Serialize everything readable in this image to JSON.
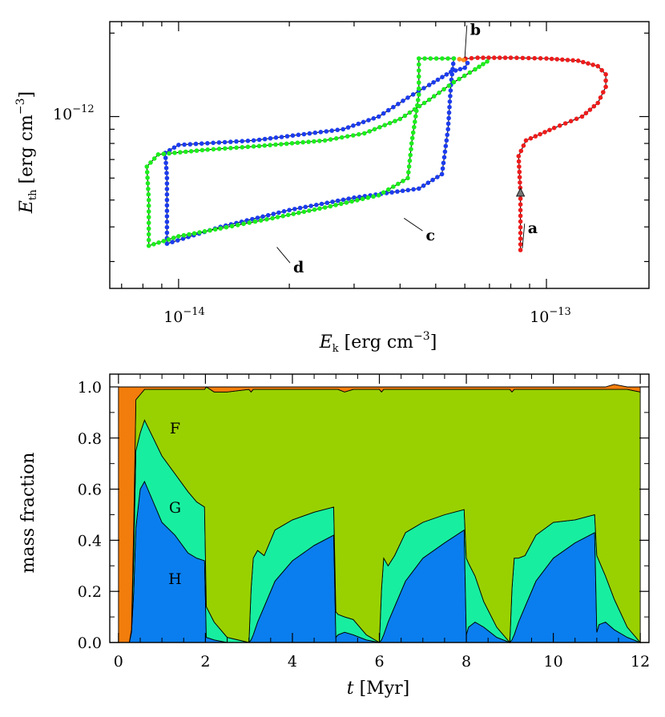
{
  "chart_data": [
    {
      "type": "line",
      "x_scale": "log",
      "y_scale": "log",
      "xlabel_main": "E",
      "xlabel_sub": "k",
      "xlabel_units": "[erg cm",
      "xlabel_exp": "−3",
      "xlabel_close": "]",
      "ylabel_main": "E",
      "ylabel_sub": "th",
      "ylabel_units": "[erg cm",
      "ylabel_exp": "−3",
      "ylabel_close": "]",
      "xlim": [
        6.5e-15,
        1.9e-13
      ],
      "ylim": [
        2.4e-13,
        2.2e-12
      ],
      "x_tick_labels": [
        {
          "value": 1e-14,
          "base": "10",
          "exp": "−14"
        },
        {
          "value": 1e-13,
          "base": "10",
          "exp": "−13"
        }
      ],
      "y_tick_labels": [
        {
          "value": 1e-12,
          "base": "10",
          "exp": "−12"
        }
      ],
      "series": [
        {
          "label": "a",
          "color": "#ee1c1c",
          "points": [
            [
              8.5e-14,
              3.3e-13
            ],
            [
              8.5e-14,
              5.3e-13
            ],
            [
              8.4e-14,
              7.2e-13
            ],
            [
              8.8e-14,
              8.2e-13
            ],
            [
              1.05e-13,
              9.1e-13
            ],
            [
              1.25e-13,
              1e-12
            ],
            [
              1.38e-13,
              1.12e-12
            ],
            [
              1.45e-13,
              1.28e-12
            ],
            [
              1.45e-13,
              1.42e-12
            ],
            [
              1.38e-13,
              1.52e-12
            ],
            [
              1.22e-13,
              1.59e-12
            ],
            [
              1e-13,
              1.62e-12
            ],
            [
              8e-14,
              1.63e-12
            ],
            [
              6.5e-14,
              1.63e-12
            ],
            [
              5.8e-14,
              1.61e-12
            ]
          ]
        },
        {
          "label": "b",
          "color": "#ff8a1c",
          "points": [
            [
              5.8e-14,
              1.61e-12
            ],
            [
              5.95e-14,
              1.6e-12
            ],
            [
              6.1e-14,
              1.56e-12
            ]
          ]
        },
        {
          "label": "c",
          "color": "#1c3cee",
          "points": [
            [
              6.1e-14,
              1.56e-12
            ],
            [
              6e-14,
              1.5e-12
            ],
            [
              5.5e-14,
              1.45e-12
            ],
            [
              4.8e-14,
              1.3e-12
            ],
            [
              4.2e-14,
              1.17e-12
            ],
            [
              3.5e-14,
              1e-12
            ],
            [
              2.8e-14,
              9e-13
            ],
            [
              1.6e-14,
              8.2e-13
            ],
            [
              1e-14,
              7.9e-13
            ],
            [
              9.2e-15,
              7.4e-13
            ],
            [
              9.3e-15,
              6e-13
            ],
            [
              9.3e-15,
              3.48e-13
            ],
            [
              1.3e-14,
              4e-13
            ],
            [
              2e-14,
              4.6e-13
            ],
            [
              3e-14,
              5.1e-13
            ],
            [
              4.5e-14,
              5.5e-13
            ],
            [
              5.2e-14,
              6.2e-13
            ],
            [
              5.4e-14,
              9e-13
            ],
            [
              5.5e-14,
              1.3e-12
            ],
            [
              5.6e-14,
              1.62e-12
            ]
          ]
        },
        {
          "label": "d",
          "color": "#1cee1c",
          "points": [
            [
              5.6e-14,
              1.62e-12
            ],
            [
              4.5e-14,
              1.62e-12
            ],
            [
              4.5e-14,
              1.2e-12
            ],
            [
              4.3e-14,
              8e-13
            ],
            [
              4.2e-14,
              6e-13
            ],
            [
              3.5e-14,
              5.2e-13
            ],
            [
              2.5e-14,
              4.7e-13
            ],
            [
              1.8e-14,
              4.3e-13
            ],
            [
              1.3e-14,
              3.95e-13
            ],
            [
              1e-14,
              3.7e-13
            ],
            [
              8.3e-15,
              3.42e-13
            ],
            [
              8.3e-15,
              5e-13
            ],
            [
              8.2e-15,
              6.6e-13
            ],
            [
              8.8e-15,
              7.3e-13
            ],
            [
              1.2e-14,
              7.6e-13
            ],
            [
              1.6e-14,
              7.8e-13
            ],
            [
              2.5e-14,
              8.2e-13
            ],
            [
              3.2e-14,
              8.7e-13
            ],
            [
              4e-14,
              9.8e-13
            ],
            [
              4.8e-14,
              1.15e-12
            ],
            [
              5.6e-14,
              1.33e-12
            ],
            [
              6.4e-14,
              1.48e-12
            ],
            [
              6.9e-14,
              1.58e-12
            ]
          ]
        }
      ],
      "arrow_marker": [
        8.5e-14,
        5.3e-13
      ],
      "annotations": [
        {
          "text": "a",
          "at": [
            8.9e-14,
            3.95e-13
          ],
          "tip": [
            8.6e-14,
            3.35e-13
          ]
        },
        {
          "text": "b",
          "at": [
            6.2e-14,
            2.05e-12
          ],
          "tip": [
            6e-14,
            1.63e-12
          ]
        },
        {
          "text": "c",
          "at": [
            4.7e-14,
            3.72e-13
          ],
          "tip": [
            4.1e-14,
            4.3e-13
          ]
        },
        {
          "text": "d",
          "at": [
            2.05e-14,
            2.85e-13
          ],
          "tip": [
            1.85e-14,
            3.38e-13
          ]
        }
      ]
    },
    {
      "type": "area",
      "stacked": true,
      "xlabel_main": "t",
      "xlabel_units": "[Myr]",
      "ylabel": "mass fraction",
      "xlim": [
        -0.2,
        12.2
      ],
      "ylim": [
        0.0,
        1.05
      ],
      "x_ticks": [
        0,
        2,
        4,
        6,
        8,
        10,
        12
      ],
      "y_ticks": [
        "0.0",
        "0.2",
        "0.4",
        "0.6",
        "0.8",
        "1.0"
      ],
      "x": [
        0,
        0.25,
        0.3,
        0.35,
        0.4,
        0.5,
        0.6,
        0.8,
        1.0,
        1.3,
        1.6,
        1.8,
        1.98,
        2.02,
        2.2,
        2.5,
        3.0,
        3.05,
        3.1,
        3.2,
        3.35,
        3.6,
        4.0,
        4.5,
        4.95,
        5.0,
        5.05,
        5.2,
        5.4,
        5.7,
        6.0,
        6.05,
        6.1,
        6.2,
        6.35,
        6.6,
        7.0,
        7.5,
        7.95,
        8.0,
        8.05,
        8.2,
        8.4,
        8.7,
        9.0,
        9.05,
        9.1,
        9.2,
        9.35,
        9.6,
        10.0,
        10.5,
        10.95,
        11.0,
        11.05,
        11.2,
        11.4,
        11.7,
        12.0
      ],
      "series": [
        {
          "name": "H",
          "color": "#0a7eee",
          "values": [
            0,
            0,
            0.04,
            0.2,
            0.45,
            0.6,
            0.63,
            0.55,
            0.47,
            0.42,
            0.35,
            0.33,
            0.32,
            0.02,
            0.01,
            0.0,
            0.0,
            0.01,
            0.03,
            0.08,
            0.14,
            0.24,
            0.32,
            0.38,
            0.42,
            0.02,
            0.03,
            0.04,
            0.03,
            0.01,
            0.0,
            0.01,
            0.03,
            0.08,
            0.14,
            0.24,
            0.33,
            0.39,
            0.44,
            0.03,
            0.06,
            0.08,
            0.06,
            0.02,
            0.0,
            0.01,
            0.03,
            0.08,
            0.14,
            0.24,
            0.33,
            0.39,
            0.43,
            0.04,
            0.07,
            0.08,
            0.05,
            0.02,
            0.0
          ]
        },
        {
          "name": "G",
          "color": "#18eea0",
          "values": [
            0,
            0,
            0.01,
            0.15,
            0.3,
            0.22,
            0.24,
            0.25,
            0.26,
            0.24,
            0.24,
            0.22,
            0.21,
            0.12,
            0.07,
            0.02,
            0.0,
            0.2,
            0.3,
            0.28,
            0.2,
            0.2,
            0.16,
            0.13,
            0.11,
            0.1,
            0.08,
            0.06,
            0.06,
            0.02,
            0.0,
            0.2,
            0.3,
            0.22,
            0.2,
            0.19,
            0.14,
            0.11,
            0.08,
            0.3,
            0.25,
            0.18,
            0.1,
            0.04,
            0.0,
            0.2,
            0.3,
            0.25,
            0.2,
            0.18,
            0.14,
            0.09,
            0.07,
            0.3,
            0.25,
            0.18,
            0.12,
            0.04,
            0.0
          ]
        },
        {
          "name": "F",
          "color": "#99d100",
          "values": [
            0,
            0,
            0,
            0.1,
            0.2,
            0.15,
            0.12,
            0.19,
            0.26,
            0.33,
            0.4,
            0.44,
            0.46,
            0.86,
            0.9,
            0.96,
            0.99,
            0.77,
            0.66,
            0.63,
            0.65,
            0.55,
            0.51,
            0.48,
            0.46,
            0.87,
            0.88,
            0.88,
            0.9,
            0.96,
            0.99,
            0.77,
            0.66,
            0.69,
            0.65,
            0.56,
            0.52,
            0.49,
            0.47,
            0.66,
            0.68,
            0.73,
            0.83,
            0.93,
            0.99,
            0.77,
            0.66,
            0.66,
            0.65,
            0.57,
            0.52,
            0.51,
            0.49,
            0.65,
            0.67,
            0.73,
            0.82,
            0.93,
            0.98
          ]
        },
        {
          "name": "",
          "color": "#f27d0c",
          "values": [
            1,
            1,
            0.95,
            0.55,
            0.05,
            0.03,
            0.01,
            0.01,
            0.01,
            0.01,
            0.01,
            0.01,
            0.01,
            0.0,
            0.02,
            0.02,
            0.01,
            0.02,
            0.01,
            0.01,
            0.01,
            0.01,
            0.01,
            0.01,
            0.01,
            0.01,
            0.01,
            0.02,
            0.01,
            0.01,
            0.01,
            0.02,
            0.01,
            0.01,
            0.01,
            0.01,
            0.01,
            0.01,
            0.01,
            0.01,
            0.01,
            0.01,
            0.01,
            0.01,
            0.01,
            0.02,
            0.01,
            0.01,
            0.01,
            0.01,
            0.01,
            0.01,
            0.01,
            0.01,
            0.01,
            0.01,
            0.02,
            0.01,
            0.02
          ]
        }
      ],
      "region_labels": [
        {
          "text": "F",
          "at": [
            1.3,
            0.84
          ]
        },
        {
          "text": "G",
          "at": [
            1.3,
            0.53
          ]
        },
        {
          "text": "H",
          "at": [
            1.3,
            0.25
          ]
        }
      ]
    }
  ]
}
